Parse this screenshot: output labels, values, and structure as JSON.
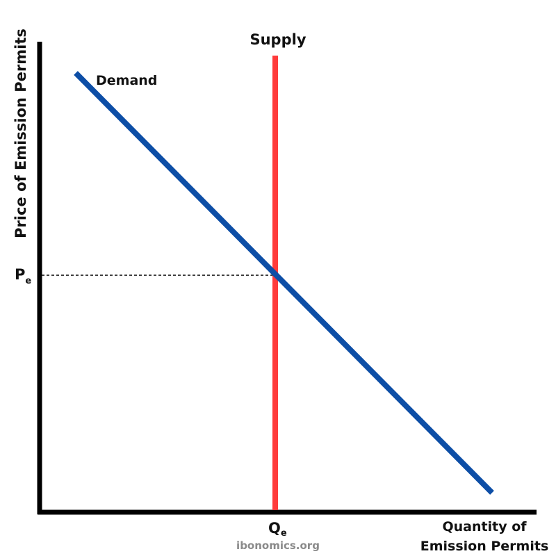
{
  "y_axis_label": "Price of Emission Permits",
  "x_axis_label_line1": "Quantity of",
  "x_axis_label_line2": "Emission Permits",
  "supply_label": "Supply",
  "demand_label": "Demand",
  "price_label": "P",
  "price_subscript": "e",
  "quantity_label": "Q",
  "quantity_subscript": "e",
  "watermark": "ibonomics.org",
  "colors": {
    "supply": "#ff3b3b",
    "demand": "#0d4ea6",
    "axes": "#000000"
  }
}
